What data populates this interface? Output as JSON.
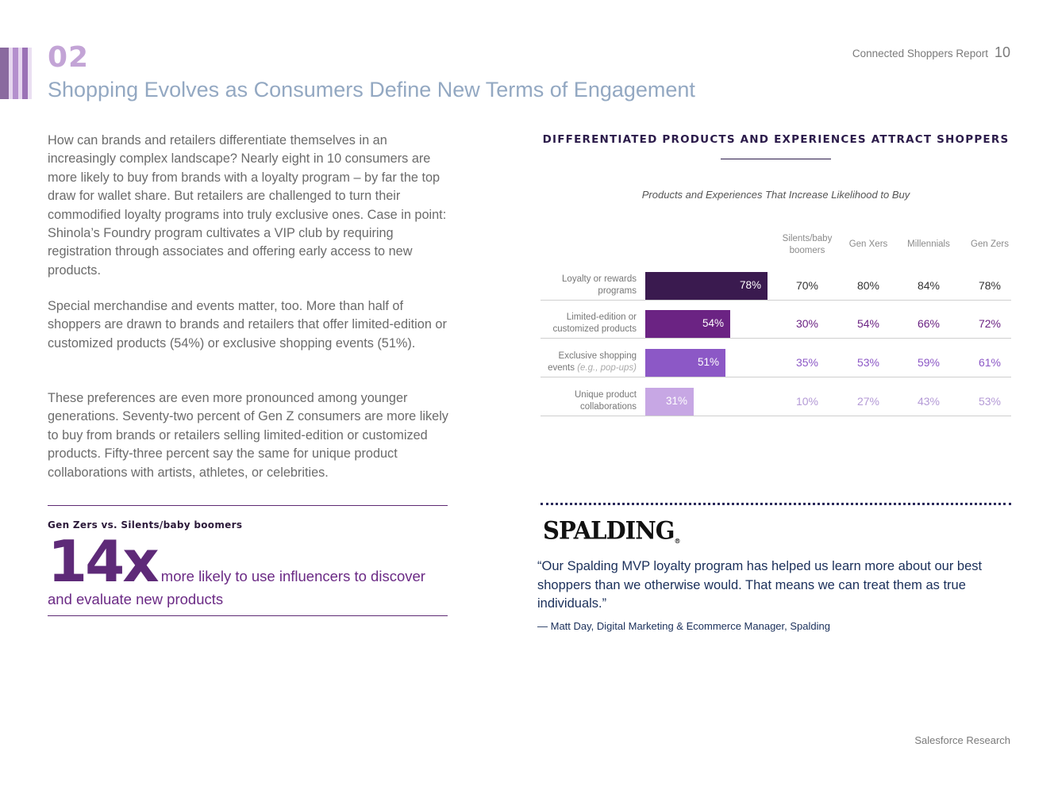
{
  "header": {
    "section_number": "02",
    "section_title": "Shopping Evolves as Consumers Define New Terms of Engagement",
    "report_name": "Connected Shoppers Report",
    "page_number": "10"
  },
  "body": {
    "paragraph_1": "How can brands and retailers differentiate themselves in an increasingly complex landscape? Nearly eight in 10 consumers are more likely to buy from brands with a loyalty program – by far the top draw for wallet share. But retailers are challenged to turn their commodified loyalty programs into truly exclusive ones. Case in point: Shinola’s Foundry program cultivates a VIP club by requiring registration through associates and offering early access to new products.",
    "paragraph_2": "Special merchandise and events matter, too. More than half of shoppers are drawn to brands and retailers that offer limited-edition or customized products (54%) or exclusive shopping events (51%).",
    "paragraph_3": "These preferences are even more pronounced among younger generations. Seventy-two percent of Gen Z consumers are more likely to buy from brands or retailers selling limited-edition or customized products. Fifty-three percent say the same for unique product collaborations with artists, athletes, or celebrities."
  },
  "callout": {
    "heading": "Gen Zers vs. Silents/baby boomers",
    "big_stat": "14x",
    "text": "more likely to use influencers to discover and evaluate new products"
  },
  "chart_data": {
    "type": "bar",
    "title": "DIFFERENTIATED PRODUCTS AND EXPERIENCES ATTRACT SHOPPERS",
    "subtitle": "Products and Experiences That Increase Likelihood to Buy",
    "categories": [
      {
        "label": "Loyalty or rewards programs",
        "italic_suffix": ""
      },
      {
        "label": "Limited-edition or customized products",
        "italic_suffix": ""
      },
      {
        "label": "Exclusive shopping events",
        "italic_suffix": "(e.g., pop-ups)"
      },
      {
        "label": "Unique product collaborations",
        "italic_suffix": ""
      }
    ],
    "values": [
      78,
      54,
      51,
      31
    ],
    "value_labels": [
      "78%",
      "54%",
      "51%",
      "31%"
    ],
    "xlim": [
      0,
      100
    ],
    "generations": [
      "Silents/baby boomers",
      "Gen Xers",
      "Millennials",
      "Gen Zers"
    ],
    "series": [
      {
        "name": "Silents/baby boomers",
        "values": [
          70,
          30,
          35,
          10
        ],
        "labels": [
          "70%",
          "30%",
          "35%",
          "10%"
        ]
      },
      {
        "name": "Gen Xers",
        "values": [
          80,
          54,
          53,
          27
        ],
        "labels": [
          "80%",
          "54%",
          "53%",
          "27%"
        ]
      },
      {
        "name": "Millennials",
        "values": [
          84,
          66,
          59,
          43
        ],
        "labels": [
          "84%",
          "66%",
          "59%",
          "43%"
        ]
      },
      {
        "name": "Gen Zers",
        "values": [
          78,
          72,
          61,
          53
        ],
        "labels": [
          "78%",
          "72%",
          "61%",
          "53%"
        ]
      }
    ],
    "colors": [
      "#3a1a4f",
      "#6b2383",
      "#8c58c6",
      "#c7a7e4"
    ],
    "text_colors": [
      "#333333",
      "#6b2383",
      "#8c58c6",
      "#b49ad6"
    ]
  },
  "quote": {
    "logo_text": "SPALDING",
    "logo_mark": "®",
    "text": "“Our Spalding MVP loyalty program has helped us learn more about our best shoppers than we otherwise would. That means we can treat them as true individuals.”",
    "attribution": "— Matt Day, Digital Marketing & Ecommerce Manager, Spalding"
  },
  "footer": {
    "source": "Salesforce Research"
  },
  "colors": {
    "section_accent": "#c3a4d6",
    "title_blue": "#93a8c2",
    "purple_dark": "#5e2a78",
    "navy": "#1a2f5a"
  }
}
